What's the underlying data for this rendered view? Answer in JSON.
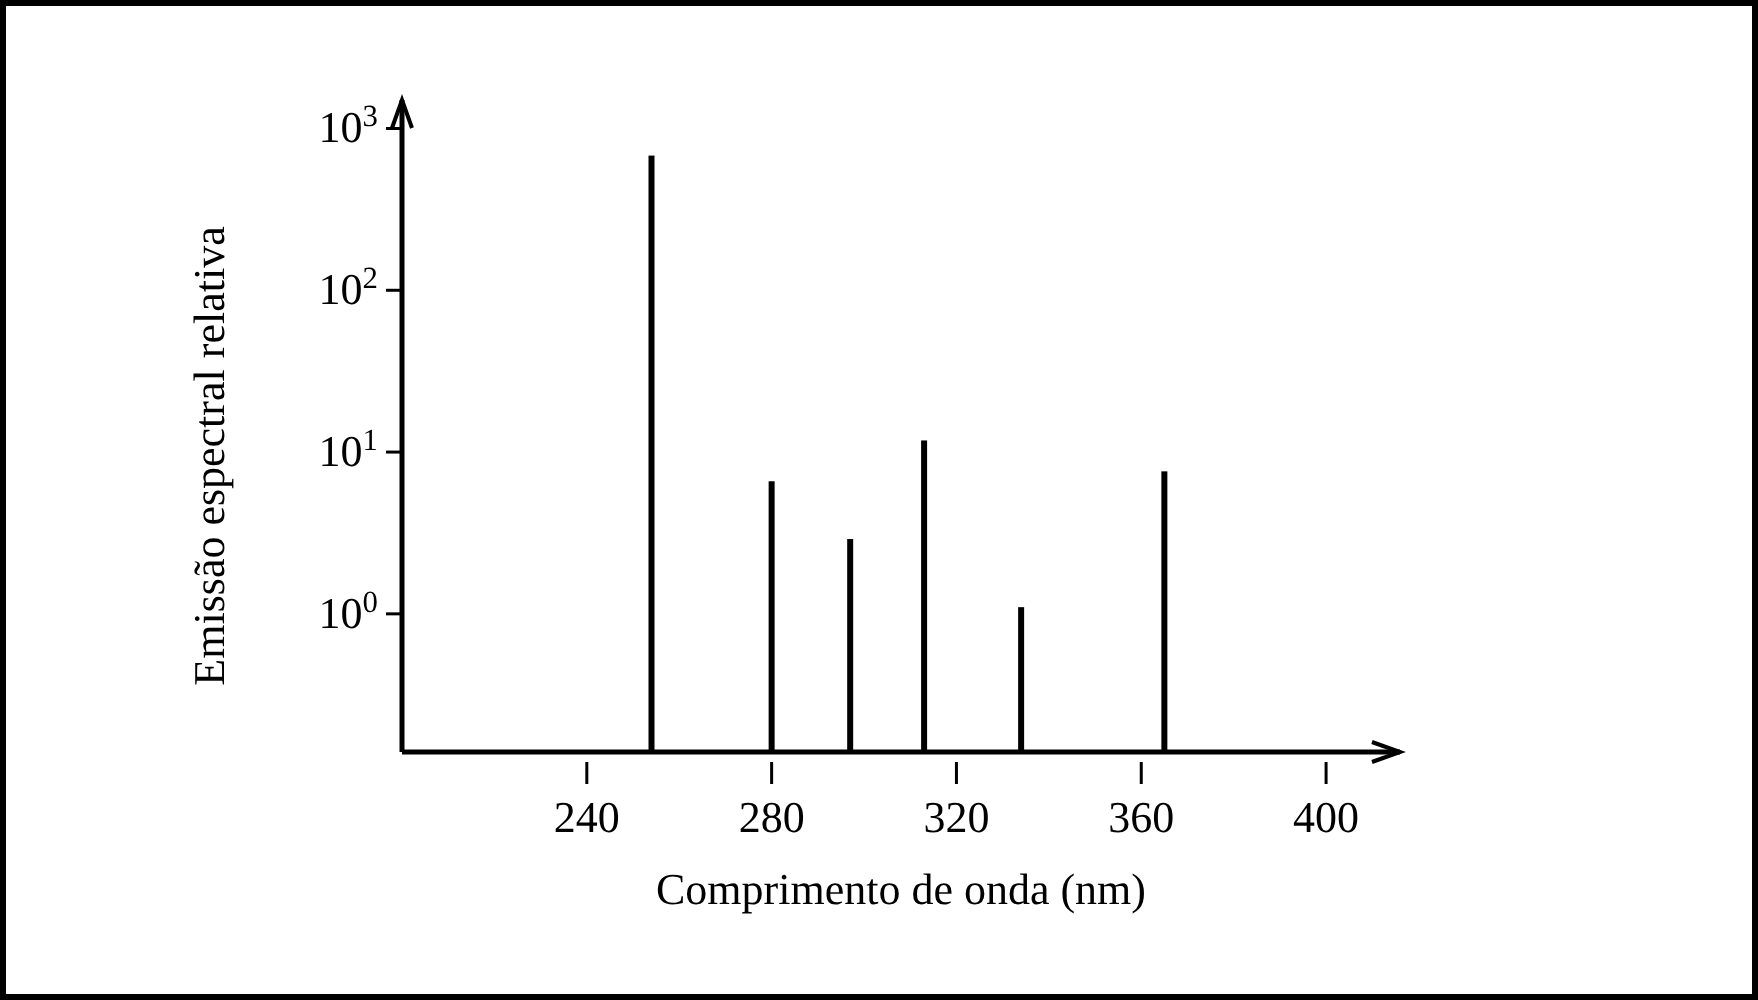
{
  "chart_data": {
    "type": "bar",
    "xlabel": "Comprimento de onda (nm)",
    "ylabel": "Emissão espectral relativa",
    "x": [
      254,
      280,
      297,
      313,
      334,
      365
    ],
    "values": [
      680,
      6.6,
      2.9,
      11.8,
      1.1,
      7.6
    ],
    "color": "#000000",
    "log": "y",
    "xlim": [
      200,
      416
    ],
    "xticks": [
      240,
      280,
      320,
      360,
      400
    ],
    "ylim": [
      0.14,
      1500
    ],
    "yticks": [
      {
        "value": 1,
        "label": "10$^{0}$"
      },
      {
        "value": 10,
        "label": "10$^{1}$"
      },
      {
        "value": 100,
        "label": "10$^{2}$"
      },
      {
        "value": 1000,
        "label": "10$^{3}$"
      }
    ],
    "grid": false
  }
}
